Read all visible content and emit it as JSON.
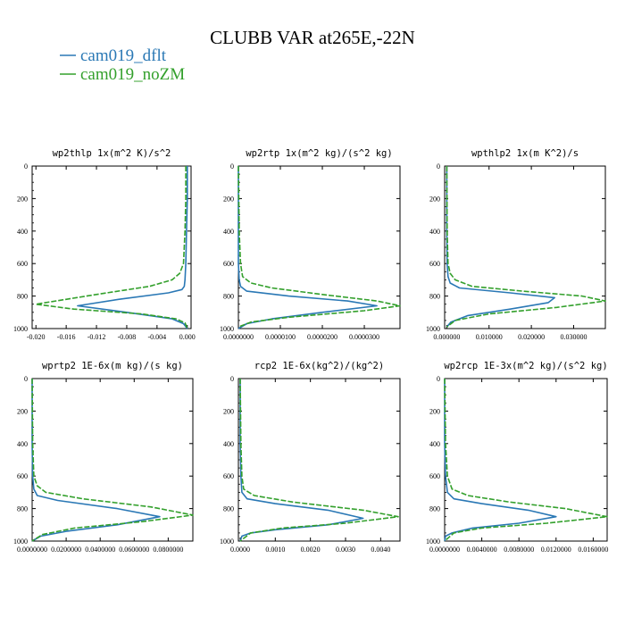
{
  "title": "CLUBB VAR at265E,-22N",
  "legend": [
    {
      "label": "cam019_dflt",
      "color": "#2a78b5",
      "dash": ""
    },
    {
      "label": "cam019_noZM",
      "color": "#33a02c",
      "dash": "6,2"
    }
  ],
  "chart_data": [
    {
      "type": "line",
      "title": "wp2thlp   1x(m^2 K)/s^2",
      "xlim": [
        -0.0205,
        0.0005
      ],
      "ylim": [
        1000,
        0
      ],
      "x_ticks": [
        -0.02,
        -0.016,
        -0.012,
        -0.008,
        -0.004,
        0.0
      ],
      "x_tick_labels": [
        "-0.020",
        "-0.016",
        "-0.012",
        "-0.008",
        "-0.004",
        "0.000"
      ],
      "y_ticks": [
        0,
        200,
        400,
        600,
        800,
        1000
      ],
      "y_tick_labels": [
        "0",
        "200",
        "400",
        "600",
        "800",
        "1000"
      ],
      "series": [
        {
          "name": "cam019_dflt",
          "x": [
            0.0,
            0.0,
            -0.0001,
            -0.0002,
            -0.0003,
            -0.0004,
            -0.0007,
            -0.0025,
            -0.009,
            -0.0145,
            -0.008,
            -0.002,
            -0.0005,
            0.0
          ],
          "y": [
            0,
            200,
            400,
            600,
            700,
            740,
            760,
            780,
            820,
            860,
            900,
            940,
            970,
            1000
          ]
        },
        {
          "name": "cam019_noZM",
          "x": [
            -0.0002,
            -0.0002,
            -0.0003,
            -0.0005,
            -0.001,
            -0.002,
            -0.005,
            -0.012,
            -0.02,
            -0.015,
            -0.006,
            -0.0015,
            -0.0003,
            0.0
          ],
          "y": [
            0,
            200,
            400,
            600,
            660,
            700,
            740,
            790,
            850,
            880,
            910,
            940,
            965,
            1000
          ]
        }
      ]
    },
    {
      "type": "line",
      "title": "wp2rtp   1x(m^2 kg)/(s^2 kg)",
      "xlim": [
        0,
        3.85e-05
      ],
      "ylim": [
        1000,
        0
      ],
      "x_ticks": [
        0,
        1e-05,
        2e-05,
        3e-05
      ],
      "x_tick_labels": [
        "0.0000000",
        "0.0000100",
        "0.0000200",
        "0.0000300"
      ],
      "y_ticks": [
        0,
        200,
        400,
        600,
        800,
        1000
      ],
      "y_tick_labels": [
        "0",
        "200",
        "400",
        "600",
        "800",
        "1000"
      ],
      "series": [
        {
          "name": "cam019_dflt",
          "x": [
            0,
            0,
            0,
            2e-07,
            5e-07,
            2e-06,
            1.2e-05,
            2.6e-05,
            3.3e-05,
            2e-05,
            8e-06,
            2e-06,
            0.0
          ],
          "y": [
            0,
            400,
            600,
            700,
            740,
            770,
            800,
            830,
            860,
            900,
            940,
            970,
            1000
          ]
        },
        {
          "name": "cam019_noZM",
          "x": [
            0,
            2e-07,
            5e-07,
            1e-06,
            3e-06,
            8e-06,
            2e-05,
            3.3e-05,
            3.85e-05,
            3e-05,
            1.2e-05,
            3e-06,
            0.0
          ],
          "y": [
            0,
            400,
            600,
            680,
            720,
            750,
            790,
            830,
            860,
            890,
            930,
            960,
            990
          ]
        }
      ]
    },
    {
      "type": "line",
      "title": "wpthlp2   1x(m K^2)/s",
      "xlim": [
        -0.0005,
        0.0375
      ],
      "ylim": [
        1000,
        0
      ],
      "x_ticks": [
        0,
        0.01,
        0.02,
        0.03
      ],
      "x_tick_labels": [
        "0.000000",
        "0.010000",
        "0.020000",
        "0.030000"
      ],
      "y_ticks": [
        0,
        200,
        400,
        600,
        800,
        1000
      ],
      "y_tick_labels": [
        "0",
        "200",
        "400",
        "600",
        "800",
        "1000"
      ],
      "series": [
        {
          "name": "cam019_dflt",
          "x": [
            0.0,
            0.0,
            0.0001,
            0.0003,
            0.0008,
            0.003,
            0.015,
            0.0255,
            0.024,
            0.015,
            0.005,
            0.001,
            0.0
          ],
          "y": [
            0,
            400,
            600,
            680,
            720,
            750,
            780,
            810,
            840,
            880,
            920,
            960,
            990
          ]
        },
        {
          "name": "cam019_noZM",
          "x": [
            0.0,
            0.0001,
            0.0003,
            0.0008,
            0.002,
            0.006,
            0.018,
            0.032,
            0.0375,
            0.026,
            0.01,
            0.002,
            0.0
          ],
          "y": [
            0,
            400,
            600,
            660,
            700,
            740,
            770,
            800,
            830,
            870,
            910,
            950,
            990
          ]
        }
      ]
    },
    {
      "type": "line",
      "title": "wprtp2   1E-6x(m kg)/(s kg)",
      "xlim": [
        0,
        0.0945
      ],
      "ylim": [
        1000,
        0
      ],
      "x_ticks": [
        0,
        0.02,
        0.04,
        0.06,
        0.08
      ],
      "x_tick_labels": [
        "0.0000000",
        "0.0200000",
        "0.0400000",
        "0.0600000",
        "0.0800000"
      ],
      "y_ticks": [
        0,
        200,
        400,
        600,
        800,
        1000
      ],
      "y_tick_labels": [
        "0",
        "200",
        "400",
        "600",
        "800",
        "1000"
      ],
      "series": [
        {
          "name": "cam019_dflt",
          "x": [
            0,
            0,
            0.0003,
            0.001,
            0.003,
            0.015,
            0.05,
            0.075,
            0.05,
            0.02,
            0.005,
            0.0
          ],
          "y": [
            0,
            400,
            600,
            680,
            720,
            750,
            800,
            850,
            900,
            940,
            970,
            1000
          ]
        },
        {
          "name": "cam019_noZM",
          "x": [
            0,
            0.0003,
            0.001,
            0.003,
            0.008,
            0.03,
            0.07,
            0.0945,
            0.065,
            0.025,
            0.006,
            0.0
          ],
          "y": [
            0,
            400,
            600,
            660,
            700,
            740,
            790,
            840,
            880,
            920,
            960,
            1000
          ]
        }
      ]
    },
    {
      "type": "line",
      "title": "rcp2   1E-6x(kg^2)/(kg^2)",
      "xlim": [
        -5e-05,
        0.00455
      ],
      "ylim": [
        1000,
        0
      ],
      "x_ticks": [
        0,
        0.001,
        0.002,
        0.003,
        0.004
      ],
      "x_tick_labels": [
        "0.0000",
        "0.0010",
        "0.0020",
        "0.0030",
        "0.0040"
      ],
      "y_ticks": [
        0,
        200,
        400,
        600,
        800,
        1000
      ],
      "y_tick_labels": [
        "0",
        "200",
        "400",
        "600",
        "800",
        "1000"
      ],
      "series": [
        {
          "name": "cam019_dflt",
          "x": [
            0,
            0,
            2e-05,
            5e-05,
            0.0002,
            0.001,
            0.0025,
            0.0035,
            0.0025,
            0.001,
            0.0003,
            5e-05,
            0
          ],
          "y": [
            0,
            400,
            600,
            700,
            740,
            770,
            810,
            860,
            900,
            930,
            950,
            970,
            1000
          ]
        },
        {
          "name": "cam019_noZM",
          "x": [
            0,
            2e-05,
            5e-05,
            0.0001,
            0.0004,
            0.0015,
            0.0035,
            0.0045,
            0.003,
            0.0012,
            0.0003,
            0
          ],
          "y": [
            0,
            400,
            600,
            680,
            720,
            760,
            810,
            850,
            890,
            920,
            950,
            1000
          ]
        }
      ]
    },
    {
      "type": "line",
      "title": "wp2rcp   1E-3x(m^2 kg)/(s^2 kg)",
      "xlim": [
        0,
        0.0175
      ],
      "ylim": [
        1000,
        0
      ],
      "x_ticks": [
        0,
        0.004,
        0.008,
        0.012,
        0.016
      ],
      "x_tick_labels": [
        "0.0000000",
        "0.0040000",
        "0.0080000",
        "0.0120000",
        "0.0160000"
      ],
      "y_ticks": [
        0,
        200,
        400,
        600,
        800,
        1000
      ],
      "y_tick_labels": [
        "0",
        "200",
        "400",
        "600",
        "800",
        "1000"
      ],
      "series": [
        {
          "name": "cam019_dflt",
          "x": [
            0,
            0,
            0.0001,
            0.0003,
            0.001,
            0.004,
            0.009,
            0.012,
            0.008,
            0.003,
            0.0008,
            0.0001,
            0
          ],
          "y": [
            0,
            400,
            600,
            700,
            740,
            770,
            810,
            850,
            890,
            920,
            950,
            970,
            1000
          ]
        },
        {
          "name": "cam019_noZM",
          "x": [
            0,
            0.0001,
            0.0003,
            0.0008,
            0.0025,
            0.007,
            0.013,
            0.0175,
            0.011,
            0.004,
            0.001,
            0
          ],
          "y": [
            0,
            400,
            600,
            680,
            720,
            760,
            800,
            850,
            890,
            920,
            950,
            1000
          ]
        }
      ]
    }
  ]
}
